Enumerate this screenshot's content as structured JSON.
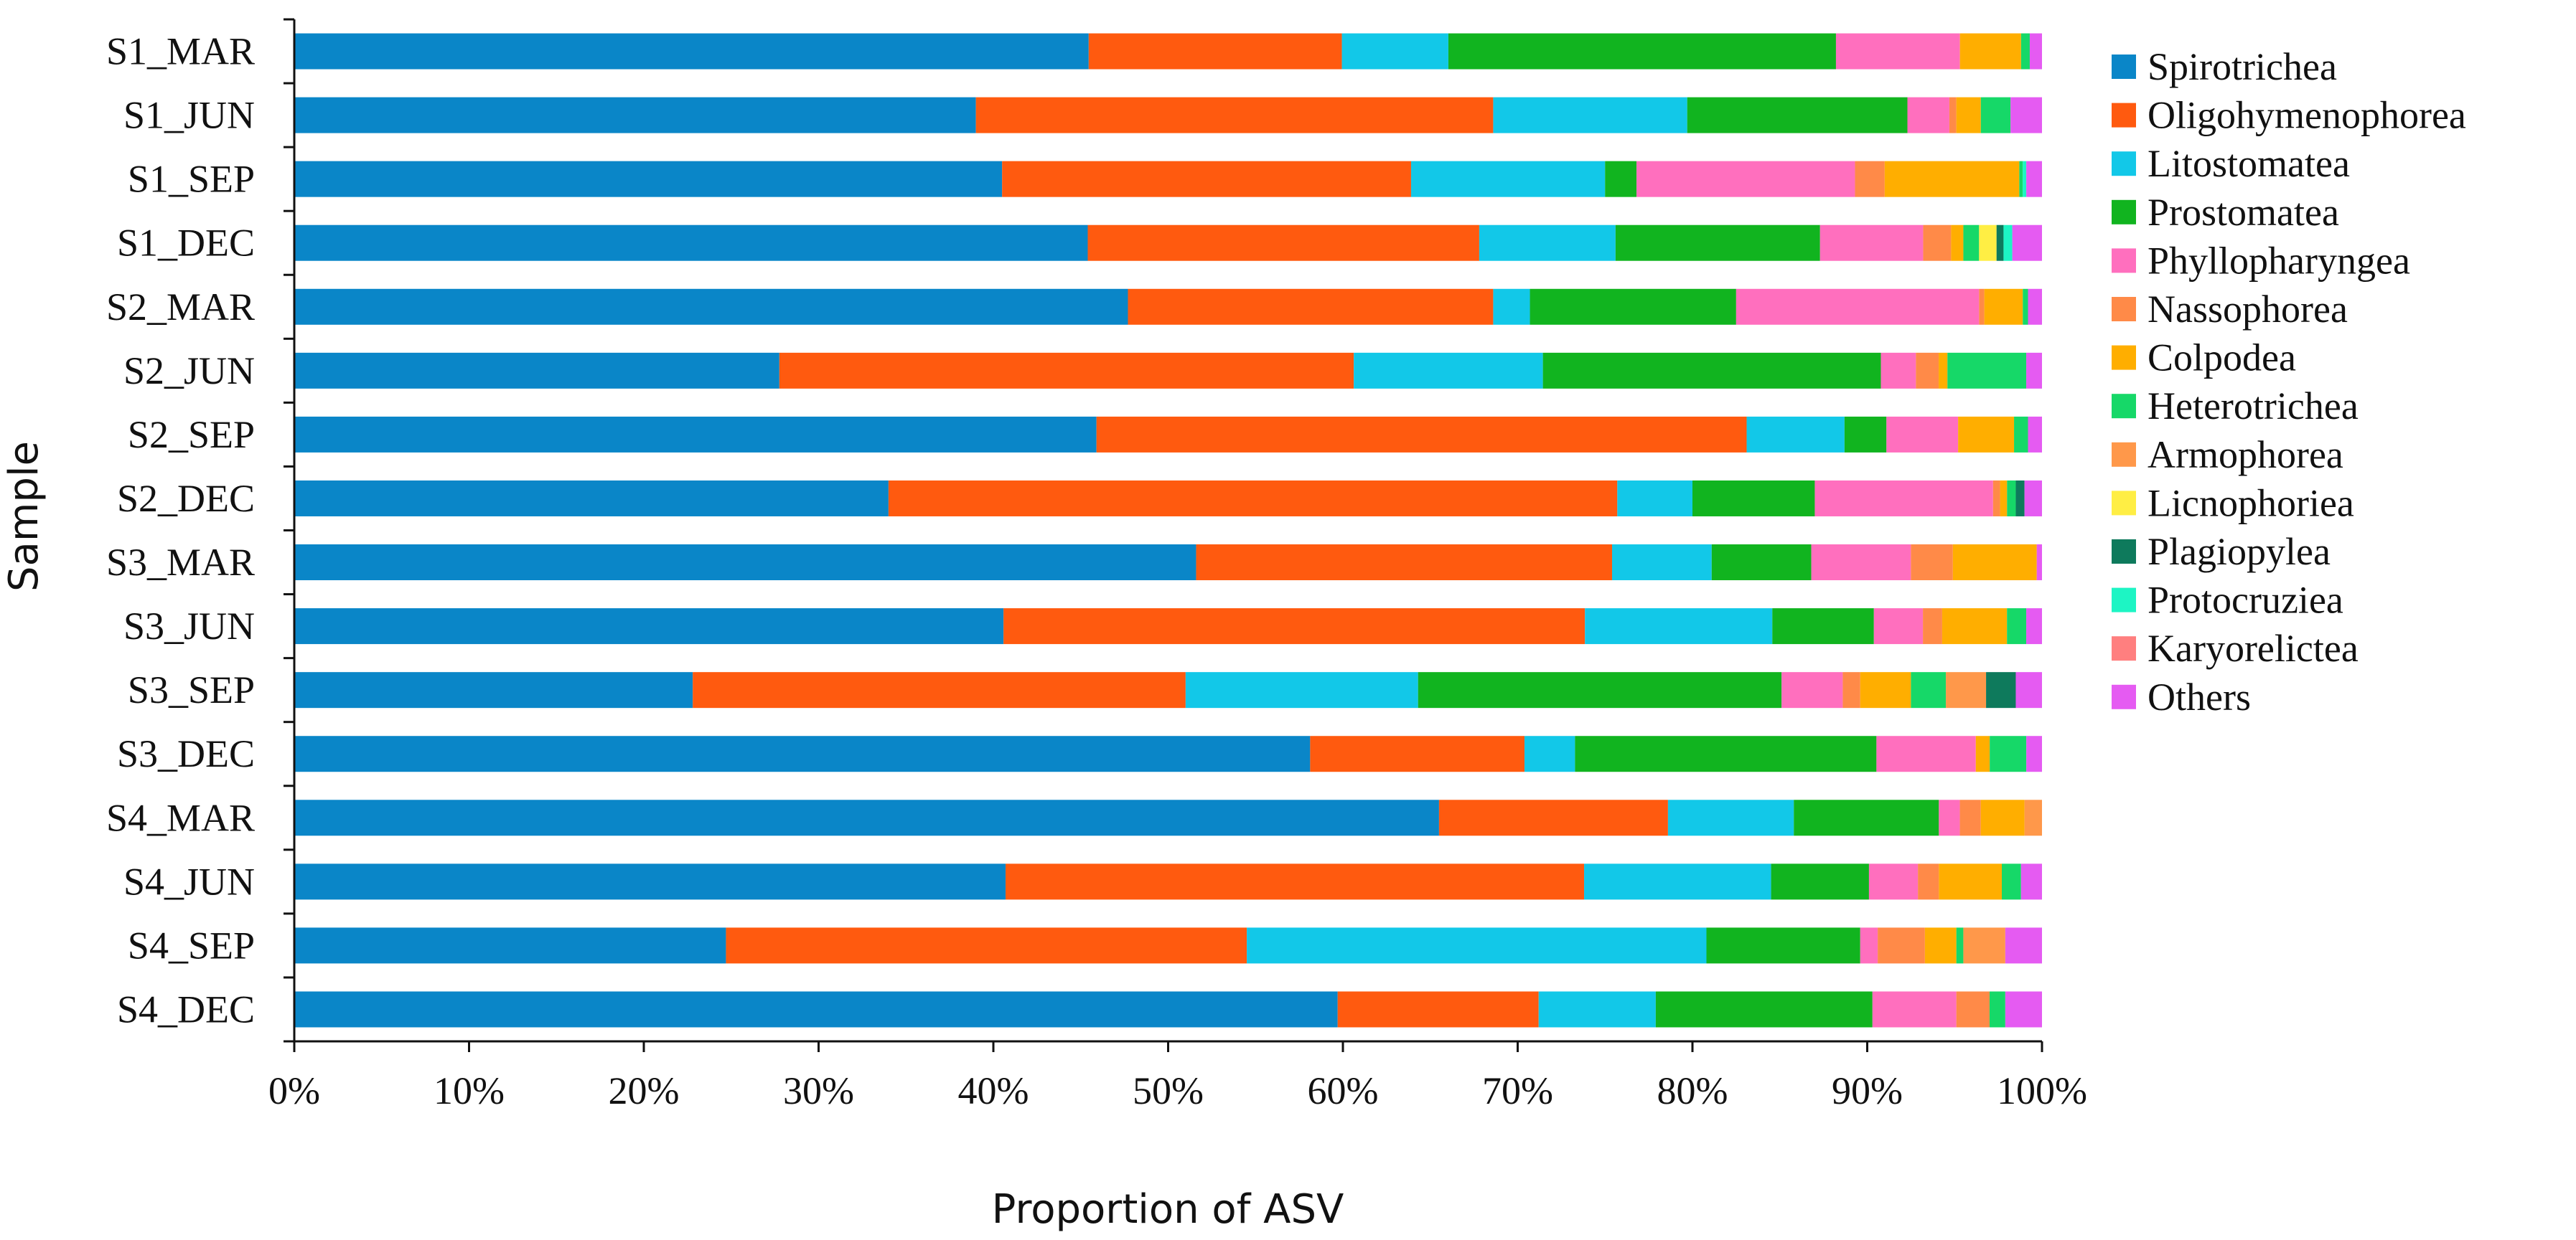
{
  "chart_data": {
    "type": "bar",
    "orientation": "horizontal",
    "stacked": true,
    "xlabel": "Proportion of ASV",
    "ylabel": "Sample",
    "xlim": [
      0,
      100
    ],
    "x_ticks": [
      "0%",
      "10%",
      "20%",
      "30%",
      "40%",
      "50%",
      "60%",
      "70%",
      "80%",
      "90%",
      "100%"
    ],
    "grid": false,
    "legend_position": "right",
    "categories": [
      "S1_MAR",
      "S1_JUN",
      "S1_SEP",
      "S1_DEC",
      "S2_MAR",
      "S2_JUN",
      "S2_SEP",
      "S2_DEC",
      "S3_MAR",
      "S3_JUN",
      "S3_SEP",
      "S3_DEC",
      "S4_MAR",
      "S4_JUN",
      "S4_SEP",
      "S4_DEC"
    ],
    "series": [
      {
        "name": "Spirotrichea",
        "color": "#0A86C8",
        "values": [
          45.5,
          39.0,
          40.5,
          45.4,
          47.7,
          27.7,
          45.9,
          34.0,
          51.6,
          40.5,
          22.8,
          58.3,
          65.5,
          40.7,
          24.7,
          59.7
        ]
      },
      {
        "name": "Oligohymenophorea",
        "color": "#FF5A0F",
        "values": [
          14.5,
          29.6,
          23.4,
          22.4,
          20.9,
          32.8,
          37.2,
          41.7,
          23.8,
          33.2,
          28.2,
          12.3,
          13.1,
          33.1,
          29.8,
          11.5
        ]
      },
      {
        "name": "Litostomatea",
        "color": "#12C8E8",
        "values": [
          6.1,
          11.1,
          11.1,
          7.8,
          2.1,
          10.8,
          5.6,
          4.3,
          5.7,
          10.7,
          13.3,
          2.9,
          7.2,
          10.7,
          26.3,
          6.7
        ]
      },
      {
        "name": "Prostomatea",
        "color": "#11B41F",
        "values": [
          22.2,
          12.6,
          1.8,
          11.7,
          11.8,
          19.3,
          2.4,
          7.0,
          5.7,
          5.8,
          20.8,
          17.3,
          8.3,
          5.6,
          8.8,
          12.4
        ]
      },
      {
        "name": "Phyllopharyngea",
        "color": "#FF6FBE",
        "values": [
          7.1,
          2.4,
          12.5,
          5.9,
          13.9,
          2.0,
          4.1,
          10.2,
          5.7,
          2.8,
          3.5,
          5.7,
          1.2,
          2.8,
          1.0,
          4.8
        ]
      },
      {
        "name": "Nassophorea",
        "color": "#FF8A48",
        "values": [
          0,
          0.4,
          1.7,
          1.6,
          0.3,
          1.3,
          0,
          0.4,
          2.4,
          1.1,
          1.0,
          0,
          1.2,
          1.2,
          2.7,
          1.9
        ]
      },
      {
        "name": "Colpodea",
        "color": "#FFAE00",
        "values": [
          3.5,
          1.4,
          7.7,
          0.7,
          2.2,
          0.5,
          3.2,
          0.4,
          4.8,
          3.7,
          2.9,
          0.8,
          2.5,
          3.6,
          1.8,
          0
        ]
      },
      {
        "name": "Heterotrichea",
        "color": "#16D868",
        "values": [
          0.5,
          1.7,
          0.2,
          0.9,
          0.3,
          4.5,
          0.8,
          0.5,
          0,
          1.1,
          2.0,
          2.1,
          0,
          1.1,
          0.4,
          0.9
        ]
      },
      {
        "name": "Armophorea",
        "color": "#FF984A",
        "values": [
          0,
          0,
          0,
          0,
          0,
          0,
          0,
          0,
          0,
          0,
          2.3,
          0,
          1.0,
          0,
          2.4,
          0
        ]
      },
      {
        "name": "Licnophoriea",
        "color": "#FFEE44",
        "values": [
          0,
          0,
          0,
          1.0,
          0,
          0,
          0,
          0,
          0,
          0,
          0,
          0,
          0,
          0,
          0,
          0
        ]
      },
      {
        "name": "Plagiopylea",
        "color": "#0E7A5C",
        "values": [
          0,
          0,
          0,
          0.4,
          0,
          0,
          0,
          0.5,
          0,
          0,
          1.7,
          0,
          0,
          0,
          0,
          0
        ]
      },
      {
        "name": "Protocruziea",
        "color": "#1DF5C4",
        "values": [
          0,
          0,
          0.2,
          0.5,
          0,
          0,
          0,
          0,
          0,
          0,
          0,
          0,
          0,
          0,
          0,
          0
        ]
      },
      {
        "name": "Karyorelictea",
        "color": "#FF7F7F",
        "values": [
          0,
          0,
          0,
          0,
          0,
          0,
          0,
          0,
          0,
          0,
          0,
          0,
          0,
          0,
          0,
          0
        ]
      },
      {
        "name": "Others",
        "color": "#E55BF2",
        "values": [
          0.7,
          1.8,
          0.9,
          1.7,
          0.8,
          0.9,
          0.8,
          1.0,
          0.3,
          0.9,
          1.5,
          0.9,
          0,
          1.2,
          2.1,
          2.1
        ]
      }
    ]
  }
}
